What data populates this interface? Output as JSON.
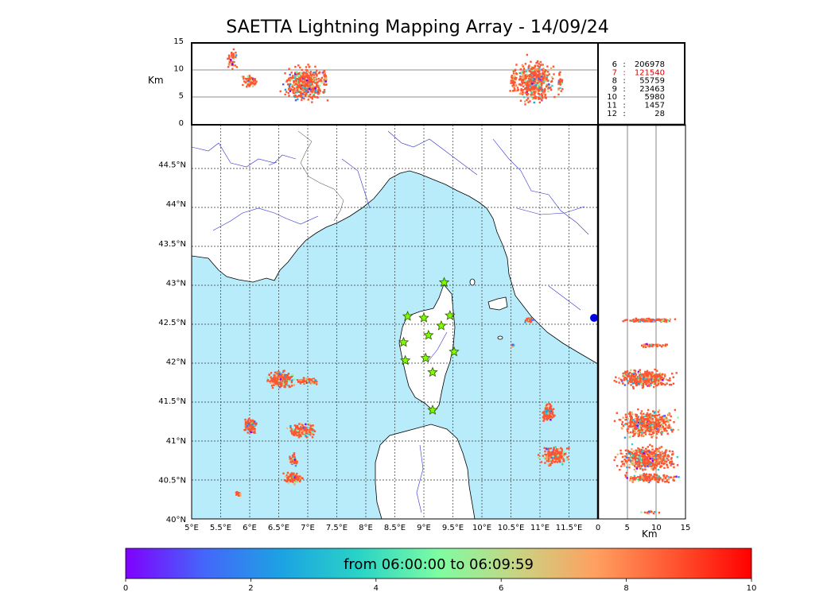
{
  "chart_data": {
    "type": "scatter",
    "title": "SAETTA Lightning Mapping Array - 14/09/24",
    "map": {
      "lon_ticks": [
        "5°E",
        "5.5°E",
        "6°E",
        "6.5°E",
        "7°E",
        "7.5°E",
        "8°E",
        "8.5°E",
        "9°E",
        "9.5°E",
        "10°E",
        "10.5°E",
        "11°E",
        "11.5°E"
      ],
      "lat_ticks": [
        "40°N",
        "40.5°N",
        "41°N",
        "41.5°N",
        "42°N",
        "42.5°N",
        "43°N",
        "43.5°N",
        "44°N",
        "44.5°N"
      ],
      "xlim": [
        5,
        12
      ],
      "ylim": [
        40,
        45
      ],
      "sea_color": "#b9ecfb",
      "stations": [
        {
          "lon": 9.35,
          "lat": 43.0
        },
        {
          "lon": 8.72,
          "lat": 42.57
        },
        {
          "lon": 9.0,
          "lat": 42.55
        },
        {
          "lon": 9.45,
          "lat": 42.58
        },
        {
          "lon": 9.3,
          "lat": 42.45
        },
        {
          "lon": 9.08,
          "lat": 42.33
        },
        {
          "lon": 8.65,
          "lat": 42.24
        },
        {
          "lon": 9.52,
          "lat": 42.12
        },
        {
          "lon": 9.03,
          "lat": 42.04
        },
        {
          "lon": 8.68,
          "lat": 42.01
        },
        {
          "lon": 9.15,
          "lat": 41.86
        },
        {
          "lon": 9.15,
          "lat": 41.38
        }
      ],
      "clusters": [
        {
          "lon": 6.55,
          "lat": 41.77,
          "rlon": 0.28,
          "rlat": 0.13,
          "n": 260
        },
        {
          "lon": 6.98,
          "lat": 41.75,
          "rlon": 0.25,
          "rlat": 0.05,
          "n": 110
        },
        {
          "lon": 6.0,
          "lat": 41.18,
          "rlon": 0.15,
          "rlat": 0.13,
          "n": 120
        },
        {
          "lon": 6.9,
          "lat": 41.12,
          "rlon": 0.3,
          "rlat": 0.1,
          "n": 180
        },
        {
          "lon": 6.75,
          "lat": 40.75,
          "rlon": 0.1,
          "rlat": 0.1,
          "n": 50
        },
        {
          "lon": 6.75,
          "lat": 40.52,
          "rlon": 0.2,
          "rlat": 0.09,
          "n": 110
        },
        {
          "lon": 5.8,
          "lat": 40.32,
          "rlon": 0.06,
          "rlat": 0.04,
          "n": 18
        },
        {
          "lon": 10.82,
          "lat": 42.52,
          "rlon": 0.1,
          "rlat": 0.04,
          "n": 30
        },
        {
          "lon": 10.52,
          "lat": 42.2,
          "rlon": 0.04,
          "rlat": 0.03,
          "n": 10
        },
        {
          "lon": 11.15,
          "lat": 41.35,
          "rlon": 0.14,
          "rlat": 0.14,
          "n": 110
        },
        {
          "lon": 11.25,
          "lat": 40.8,
          "rlon": 0.3,
          "rlat": 0.15,
          "n": 200
        }
      ]
    },
    "alt_lon_panel": {
      "ylabel": "Km",
      "yticks": [
        "0",
        "5",
        "10",
        "15"
      ],
      "ylim": [
        0,
        15
      ],
      "gridlines": [
        5,
        10
      ],
      "clusters": [
        {
          "lon": 5.7,
          "alt": 12.0,
          "rlon": 0.12,
          "ralt": 2.5,
          "n": 40
        },
        {
          "lon": 6.0,
          "alt": 8.0,
          "rlon": 0.15,
          "ralt": 1.5,
          "n": 80
        },
        {
          "lon": 6.95,
          "alt": 7.5,
          "rlon": 0.45,
          "ralt": 4.0,
          "n": 500
        },
        {
          "lon": 7.3,
          "alt": 8.5,
          "rlon": 0.05,
          "ralt": 2.0,
          "n": 30
        },
        {
          "lon": 10.9,
          "alt": 8.0,
          "rlon": 0.4,
          "ralt": 5.0,
          "n": 500
        },
        {
          "lon": 10.55,
          "alt": 8.0,
          "rlon": 0.08,
          "ralt": 2.5,
          "n": 50
        },
        {
          "lon": 11.35,
          "alt": 7.5,
          "rlon": 0.05,
          "ralt": 3.0,
          "n": 30
        }
      ]
    },
    "alt_lat_panel": {
      "xlabel": "Km",
      "xticks": [
        "0",
        "5",
        "10",
        "15"
      ],
      "xlim": [
        0,
        15
      ],
      "gridlines": [
        5,
        10
      ],
      "clusters": [
        {
          "lat": 42.52,
          "alt": 9.0,
          "ralt": 5.5,
          "rlat": 0.03,
          "n": 120
        },
        {
          "lat": 42.2,
          "alt": 9.0,
          "ralt": 3.0,
          "rlat": 0.03,
          "n": 50
        },
        {
          "lat": 41.78,
          "alt": 8.0,
          "ralt": 6.0,
          "rlat": 0.14,
          "n": 400
        },
        {
          "lat": 41.2,
          "alt": 8.5,
          "ralt": 6.0,
          "rlat": 0.22,
          "n": 500
        },
        {
          "lat": 40.77,
          "alt": 8.5,
          "ralt": 6.5,
          "rlat": 0.2,
          "n": 500
        },
        {
          "lat": 40.52,
          "alt": 8.5,
          "ralt": 6.0,
          "rlat": 0.08,
          "n": 160
        },
        {
          "lat": 40.08,
          "alt": 9.0,
          "ralt": 2.0,
          "rlat": 0.02,
          "n": 15
        }
      ]
    },
    "counts": [
      {
        "label": "6",
        "value": "206978",
        "highlight": false
      },
      {
        "label": "7",
        "value": "121540",
        "highlight": true
      },
      {
        "label": "8",
        "value": "55759",
        "highlight": false
      },
      {
        "label": "9",
        "value": "23463",
        "highlight": false
      },
      {
        "label": "10",
        "value": "5980",
        "highlight": false
      },
      {
        "label": "11",
        "value": "1457",
        "highlight": false
      },
      {
        "label": "12",
        "value": "28",
        "highlight": false
      }
    ],
    "colorbar": {
      "label": "from 06:00:00 to 06:09:59",
      "ticks": [
        "0",
        "2",
        "4",
        "6",
        "8",
        "10"
      ],
      "range": [
        0,
        10
      ],
      "colormap": [
        "#8000ff",
        "#4466fa",
        "#1ca3e3",
        "#2ad4c6",
        "#7efda2",
        "#c8d483",
        "#ffa060",
        "#ff5530",
        "#ff0000"
      ]
    }
  }
}
